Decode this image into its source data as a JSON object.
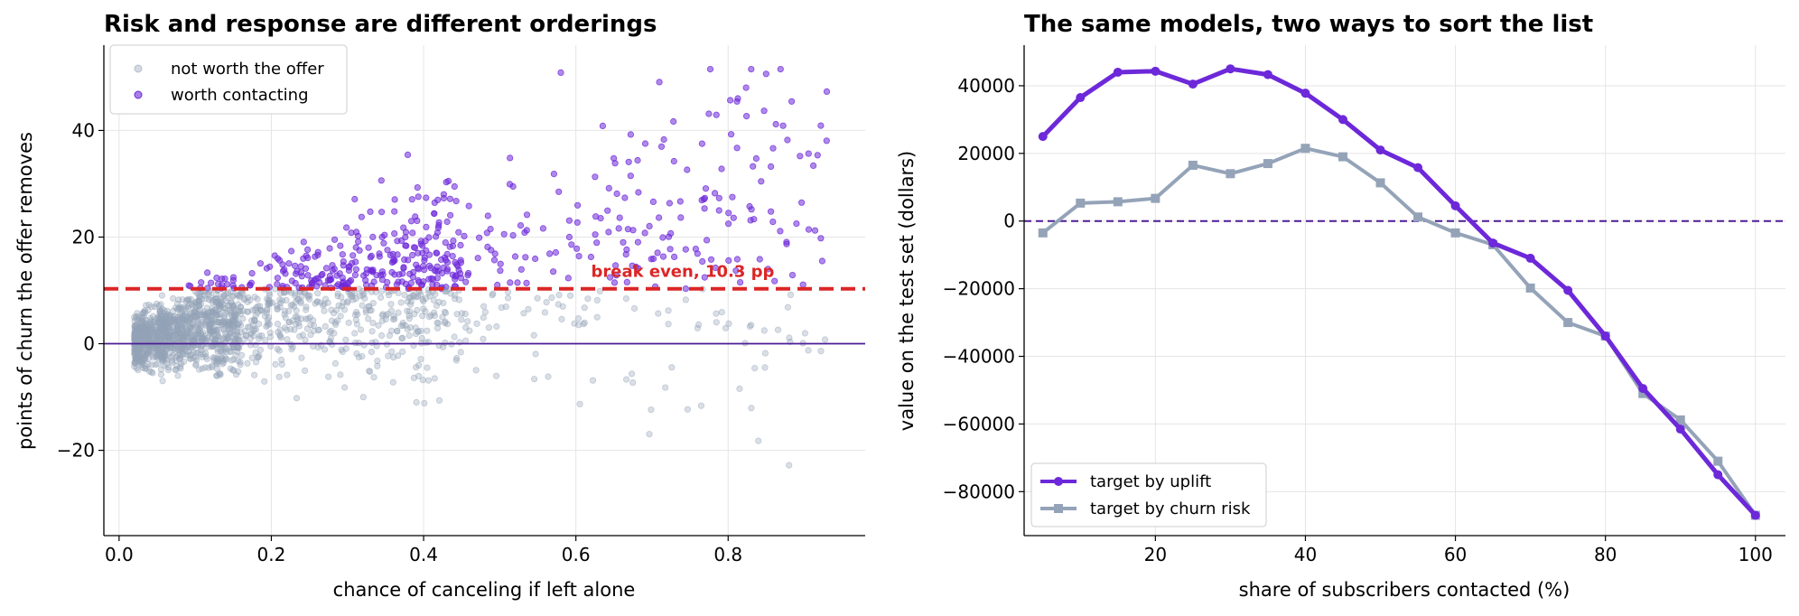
{
  "colors": {
    "worth": "#6d28d9",
    "not_worth": "#94a3b8",
    "break_even": "#dc2626",
    "zero_line": "#4c1d95",
    "uplift": "#6d28d9",
    "churn": "#94a3b8"
  },
  "chart_data": [
    {
      "type": "scatter",
      "title": "Risk and response are different orderings",
      "xlabel": "chance of canceling if left alone",
      "ylabel": "points of churn the offer removes",
      "xlim": [
        -0.02,
        0.98
      ],
      "ylim": [
        -36,
        56
      ],
      "xticks": [
        0.0,
        0.2,
        0.4,
        0.6,
        0.8
      ],
      "xtick_labels": [
        "0.0",
        "0.2",
        "0.4",
        "0.6",
        "0.8"
      ],
      "yticks": [
        -20,
        0,
        20,
        40
      ],
      "ytick_labels": [
        "−20",
        "0",
        "20",
        "40"
      ],
      "grid": true,
      "legend_position": "top-left",
      "series": [
        {
          "name": "not worth the offer",
          "point_count": 1400,
          "x_range": [
            0.02,
            0.93
          ],
          "y_range": [
            -32,
            10.3
          ],
          "marker": "circle"
        },
        {
          "name": "worth contacting",
          "point_count": 700,
          "x_range": [
            0.15,
            0.87
          ],
          "y_range": [
            10.3,
            51.5
          ],
          "marker": "circle"
        }
      ],
      "reference_lines": [
        {
          "y": 10.3,
          "style": "dashed",
          "color": "#dc2626"
        },
        {
          "y": 0,
          "style": "solid",
          "color": "#4c1d95"
        }
      ],
      "annotation": {
        "text": "break even, 10.3 pp",
        "x": 0.62,
        "y": 12.5
      }
    },
    {
      "type": "line",
      "title": "The same models, two ways to sort the list",
      "xlabel": "share of subscribers contacted (%)",
      "ylabel": "value on the test set (dollars)",
      "xlim": [
        2.5,
        104
      ],
      "ylim": [
        -93000,
        52000
      ],
      "xticks": [
        20,
        40,
        60,
        80,
        100
      ],
      "xtick_labels": [
        "20",
        "40",
        "60",
        "80",
        "100"
      ],
      "yticks": [
        -80000,
        -60000,
        -40000,
        -20000,
        0,
        20000,
        40000
      ],
      "ytick_labels": [
        "−80000",
        "−60000",
        "−40000",
        "−20000",
        "0",
        "20000",
        "40000"
      ],
      "grid": true,
      "legend_position": "bottom-left",
      "x": [
        5,
        10,
        15,
        20,
        25,
        30,
        35,
        40,
        45,
        50,
        55,
        60,
        65,
        70,
        75,
        80,
        85,
        90,
        95,
        100
      ],
      "series": [
        {
          "name": "target by uplift",
          "marker": "circle",
          "values": [
            25000,
            36500,
            44000,
            44300,
            40500,
            45000,
            43300,
            37800,
            30000,
            21000,
            15800,
            4500,
            -6500,
            -11000,
            -20500,
            -34000,
            -49500,
            -61500,
            -75000,
            -87000
          ]
        },
        {
          "name": "target by churn risk",
          "marker": "square",
          "values": [
            -3500,
            5300,
            5700,
            6700,
            16500,
            14000,
            17000,
            21500,
            19000,
            11300,
            1200,
            -3500,
            -7000,
            -19800,
            -30000,
            -34000,
            -51000,
            -58800,
            -71000,
            -87000
          ]
        }
      ],
      "reference_lines": [
        {
          "y": 0,
          "style": "dashed",
          "color": "#4c1d95"
        }
      ]
    }
  ]
}
